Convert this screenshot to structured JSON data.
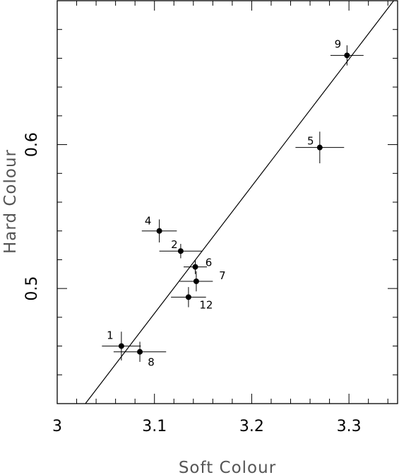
{
  "chart_data": {
    "type": "scatter",
    "xlabel": "Soft Colour",
    "ylabel": "Hard Colour",
    "xlim": [
      3.0,
      3.35
    ],
    "ylim": [
      0.42,
      0.7
    ],
    "x_ticks": [
      {
        "value": 3.0,
        "label": "3"
      },
      {
        "value": 3.1,
        "label": "3.1"
      },
      {
        "value": 3.2,
        "label": "3.2"
      },
      {
        "value": 3.3,
        "label": "3.3"
      }
    ],
    "y_ticks": [
      {
        "value": 0.5,
        "label": "0.5"
      },
      {
        "value": 0.6,
        "label": "0.6"
      }
    ],
    "x_minor_step": 0.02,
    "y_minor_step": 0.02,
    "fit_line": {
      "x": [
        3.029,
        3.346
      ],
      "y": [
        0.42,
        0.7
      ]
    },
    "points": [
      {
        "label": "1",
        "x": 3.066,
        "y": 0.46,
        "xerr": 0.02,
        "yerr": 0.01
      },
      {
        "label": "8",
        "x": 3.085,
        "y": 0.456,
        "xerr": 0.027,
        "yerr": 0.007
      },
      {
        "label": "4",
        "x": 3.105,
        "y": 0.54,
        "xerr": 0.018,
        "yerr": 0.008
      },
      {
        "label": "2",
        "x": 3.127,
        "y": 0.526,
        "xerr": 0.022,
        "yerr": 0.005
      },
      {
        "label": "6",
        "x": 3.142,
        "y": 0.515,
        "xerr": 0.012,
        "yerr": 0.005
      },
      {
        "label": "7",
        "x": 3.143,
        "y": 0.505,
        "xerr": 0.017,
        "yerr": 0.007
      },
      {
        "label": "12",
        "x": 3.135,
        "y": 0.494,
        "xerr": 0.018,
        "yerr": 0.007
      },
      {
        "label": "5",
        "x": 3.27,
        "y": 0.598,
        "xerr": 0.025,
        "yerr": 0.011
      },
      {
        "label": "9",
        "x": 3.298,
        "y": 0.662,
        "xerr": 0.017,
        "yerr": 0.007
      }
    ]
  }
}
